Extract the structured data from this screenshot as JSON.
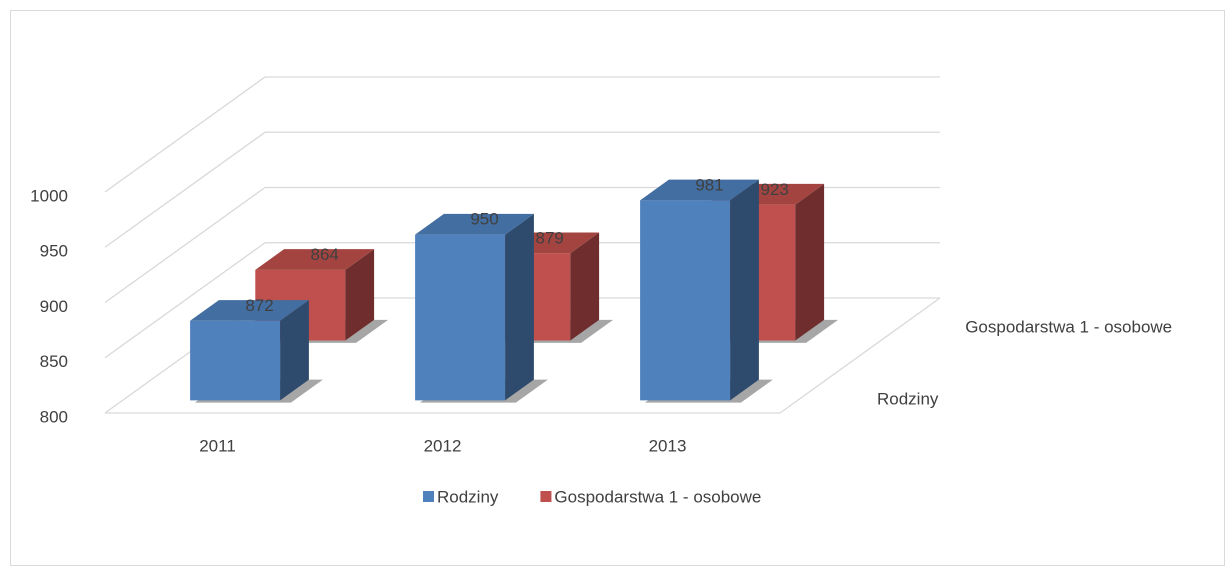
{
  "chart_data": {
    "type": "bar3d",
    "categories": [
      "2011",
      "2012",
      "2013"
    ],
    "series": [
      {
        "name": "Rodziny",
        "color": "#4f81bd",
        "values": [
          872,
          950,
          981
        ]
      },
      {
        "name": "Gospodarstwa 1 - osobowe",
        "color": "#c0504d",
        "values": [
          864,
          879,
          923
        ]
      }
    ],
    "ylim": [
      800,
      1000
    ],
    "yticks": [
      800,
      850,
      900,
      950,
      1000
    ],
    "grid": true,
    "legend": "bottom"
  }
}
